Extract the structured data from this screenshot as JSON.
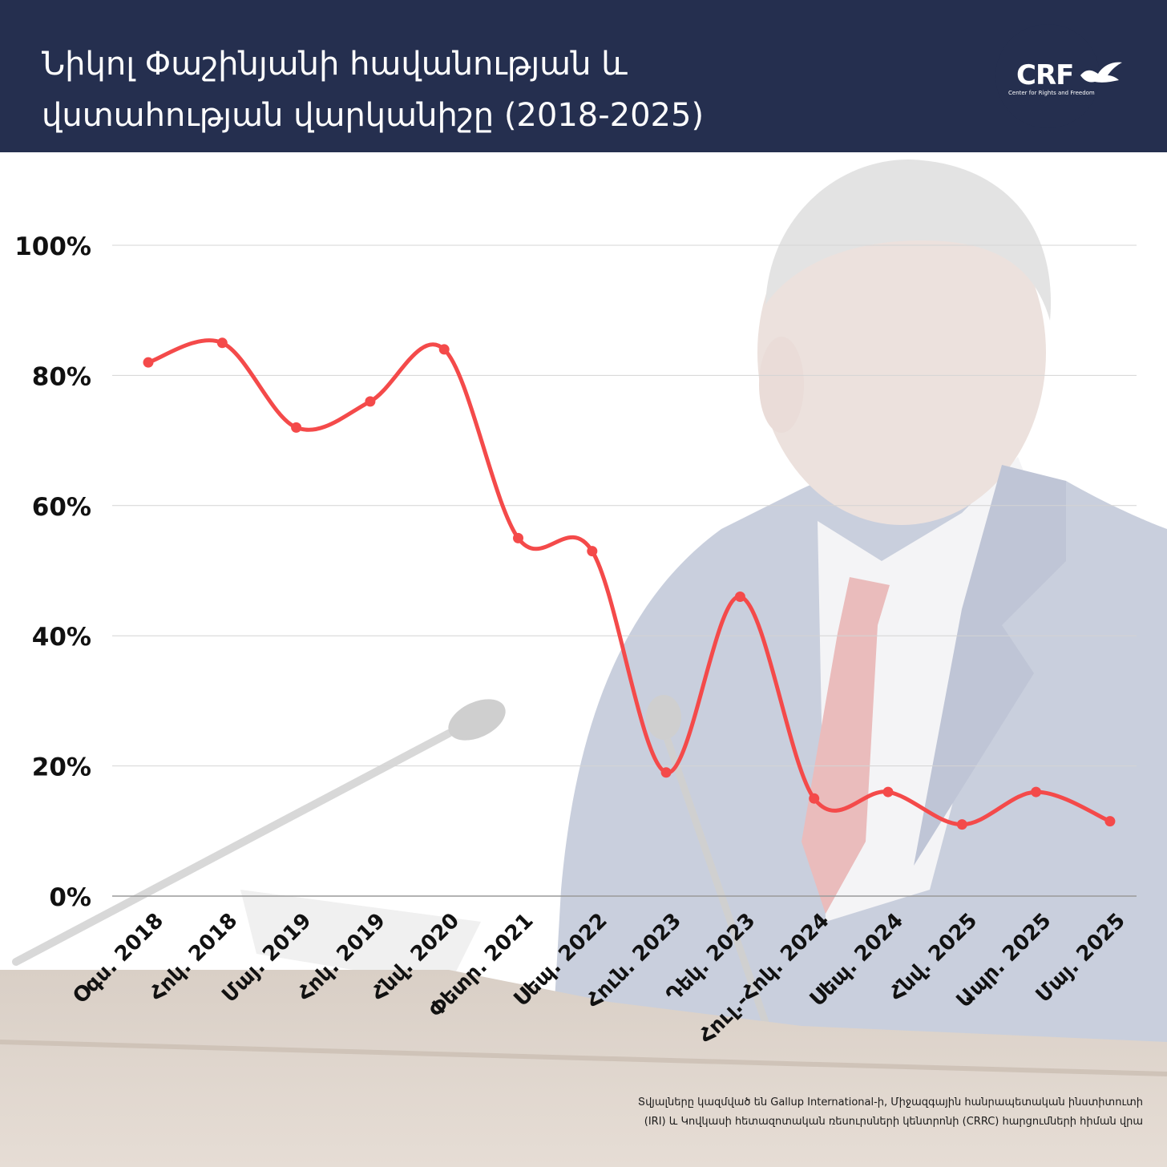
{
  "header": {
    "title_line1": "Նիկոլ Փաշինյանի հավանության և",
    "title_line2": "վստահության վարկանիշը (2018-2025)",
    "bg_color": "#252f4f"
  },
  "logo": {
    "name": "CRF",
    "subtitle": "Center for Rights and Freedom",
    "icon": "dove-icon"
  },
  "chart_data": {
    "type": "line",
    "categories": [
      "Օգս. 2018",
      "Հոկ. 2018",
      "Մայ. 2019",
      "Հոկ. 2019",
      "Հնվ. 2020",
      "Փետր. 2021",
      "Սեպ. 2022",
      "Հուն. 2023",
      "Դեկ. 2023",
      "Հուլ.-Հոկ. 2024",
      "Սեպ. 2024",
      "Հնվ. 2025",
      "Ապր. 2025",
      "Մայ. 2025"
    ],
    "values": [
      82,
      85,
      72,
      76,
      84,
      55,
      53,
      19,
      46,
      15,
      16,
      11,
      16,
      11.5
    ],
    "y_ticks": [
      "0%",
      "20%",
      "40%",
      "60%",
      "80%",
      "100%"
    ],
    "ylim": [
      0,
      100
    ],
    "line_color": "#f44a4a",
    "grid": true,
    "title": "",
    "xlabel": "",
    "ylabel": ""
  },
  "footer": {
    "source_line1": "Տվյալները կազմված են Gallup International-ի, Միջազգային հանրապետական ինստիտուտի",
    "source_line2": "(IRI) և Կովկասի հետազոտական ռեսուրսների կենտրոնի (CRRC) հարցումների հիման վրա"
  }
}
